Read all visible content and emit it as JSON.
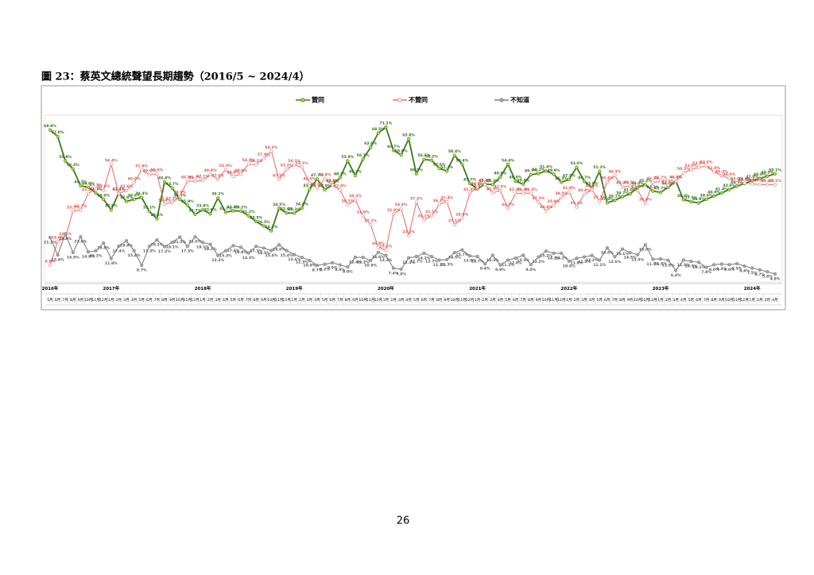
{
  "caption": "圖 23：蔡英文總統聲望長期趨勢（2016/5 ~ 2024/4）",
  "page_number": "26",
  "chart_data": {
    "type": "line",
    "categories": [
      "5月",
      "6月",
      "7月",
      "8月",
      "9月",
      "10月",
      "11月",
      "12月",
      "1月",
      "2月",
      "3月",
      "4月",
      "5月",
      "6月",
      "7月",
      "8月",
      "9月",
      "10月",
      "11月",
      "12月",
      "1月",
      "2月",
      "3月",
      "4月",
      "5月",
      "6月",
      "7月",
      "8月",
      "9月",
      "10月",
      "11月",
      "12月",
      "1月",
      "2月",
      "3月",
      "4月",
      "5月",
      "6月",
      "7月",
      "8月",
      "9月",
      "10月",
      "11月",
      "12月",
      "1月",
      "2月",
      "3月",
      "4月",
      "5月",
      "6月",
      "7月",
      "8月",
      "9月",
      "10月",
      "11月",
      "12月",
      "1月",
      "2月",
      "3月",
      "4月",
      "5月",
      "6月",
      "7月",
      "8月",
      "9月",
      "10月",
      "11月",
      "12月",
      "1月",
      "2月",
      "3月",
      "4月",
      "5月",
      "6月",
      "7月",
      "8月",
      "9月",
      "10月",
      "11月",
      "12月",
      "1月",
      "2月",
      "3月",
      "4月",
      "5月",
      "6月",
      "7月",
      "8月",
      "9月",
      "10月",
      "11月",
      "12月",
      "1月",
      "2月",
      "3月",
      "4月"
    ],
    "years": [
      "2016年",
      null,
      null,
      null,
      null,
      null,
      null,
      null,
      "2017年",
      null,
      null,
      null,
      null,
      null,
      null,
      null,
      null,
      null,
      null,
      null,
      "2018年",
      null,
      null,
      null,
      null,
      null,
      null,
      null,
      null,
      null,
      null,
      null,
      "2019年",
      null,
      null,
      null,
      null,
      null,
      null,
      null,
      null,
      null,
      null,
      null,
      "2020年",
      null,
      null,
      null,
      null,
      null,
      null,
      null,
      null,
      null,
      null,
      null,
      "2021年",
      null,
      null,
      null,
      null,
      null,
      null,
      null,
      null,
      null,
      null,
      null,
      "2022年",
      null,
      null,
      null,
      null,
      null,
      null,
      null,
      null,
      null,
      null,
      null,
      "2023年",
      null,
      null,
      null,
      null,
      null,
      null,
      null,
      null,
      null,
      null,
      null,
      "2024年",
      null,
      null,
      null
    ],
    "ylim": [
      0,
      80
    ],
    "series": [
      {
        "name": "贊同",
        "color": "#3a7a1c",
        "marker": "#b8e03a",
        "values": [
          69.9,
          67.0,
          55.9,
          52.3,
          44.7,
          44.0,
          41.4,
          38.6,
          33.8,
          41.4,
          37.6,
          38.6,
          39.4,
          33.1,
          29.8,
          46.4,
          43.7,
          38.6,
          35.9,
          31.7,
          33.8,
          32.0,
          39.2,
          32.7,
          33.4,
          33.2,
          31.2,
          28.5,
          26.5,
          24.3,
          34.5,
          32.4,
          32.3,
          34.6,
          43.1,
          47.7,
          42.9,
          45.1,
          48.3,
          55.9,
          49.3,
          56.7,
          62.0,
          68.5,
          71.2,
          60.7,
          58.6,
          65.8,
          50.1,
          56.6,
          56.2,
          52.6,
          51.3,
          58.4,
          54.4,
          45.7,
          43.3,
          45.4,
          45.2,
          48.6,
          54.4,
          46.8,
          45.4,
          49.7,
          50.2,
          51.4,
          49.9,
          46.3,
          47.5,
          53.0,
          46.7,
          43.9,
          51.2,
          37.0,
          38.1,
          39.7,
          41.0,
          44.0,
          45.2,
          42.3,
          41.7,
          44.0,
          46.8,
          38.4,
          37.5,
          36.9,
          38.6,
          40.0,
          41.4,
          43.0,
          44.5,
          45.7,
          47.0,
          48.0,
          49.0,
          50.1
        ],
        "value_labels": [
          "69.9%",
          "67.0%",
          "55.9%",
          "52.3%",
          "44.7%",
          "44.0%",
          "41.4%",
          "38.6%",
          "33.8%",
          "41.4%",
          "37.6%",
          "38.6%",
          "39.4%",
          "33.1%",
          "29.8%",
          "46.4%",
          "43.7%",
          "38.6%",
          "35.9%",
          "31.7%",
          "33.8%",
          "32.0%",
          "39.2%",
          "32.7%",
          "33.4%",
          "33.2%",
          "31.2%",
          "28.5%",
          "26.5%",
          "24.3%",
          "34.5%",
          "32.4%",
          "32.3%",
          "34.6%",
          "43.1%",
          "47.7%",
          "42.9%",
          "45.1%",
          "48.3%",
          "55.9%",
          "49.3%",
          "56.7%",
          "62.0%",
          "68.5%",
          "71.2%",
          "60.7%",
          "58.6%",
          "65.8%",
          "50.1%",
          "56.6%",
          "56.2%",
          "52.6%",
          "51.3%",
          "58.4%",
          "54.4%",
          "45.7%",
          "43.3%",
          "45.4%",
          "45.2%",
          "48.6%",
          "54.4%",
          "46.8%",
          "45.4%",
          "49.7%",
          "50.2%",
          "51.4%",
          "49.9%",
          "46.3%",
          "47.5%",
          "53.0%",
          "46.7%",
          "43.9%",
          "51.2%",
          "37.0%",
          "38.1%",
          "39.7%",
          "41.0%",
          "44.0%",
          "45.2%",
          "42.3%",
          "41.7%",
          "44.0%",
          "46.8%",
          "38.4%",
          "37.5%",
          "36.9%",
          "38.6%",
          "40.0%",
          "41.4%",
          "43.0%",
          "44.5%",
          "45.7%",
          "47.0%",
          "48.0%",
          "49.0%",
          "50.1%"
        ]
      },
      {
        "name": "不贊同",
        "color": "#e57373",
        "marker": "#ffffff",
        "values": [
          8.8,
          19.6,
          21.1,
          33.2,
          33.7,
          41.2,
          43.3,
          42.6,
          54.4,
          41.2,
          42.6,
          46.0,
          51.9,
          49.6,
          50.0,
          36.4,
          37.2,
          39.9,
          46.8,
          46.7,
          47.1,
          49.8,
          47.6,
          52.0,
          49.0,
          49.9,
          54.5,
          54.2,
          57.0,
          60.3,
          47.5,
          52.2,
          54.1,
          53.1,
          46.0,
          43.6,
          47.9,
          45.0,
          42.8,
          36.1,
          38.3,
          31.0,
          27.1,
          16.9,
          15.6,
          31.9,
          34.4,
          22.1,
          37.2,
          29.2,
          31.1,
          36.3,
          37.4,
          27.1,
          29.9,
          41.3,
          44.0,
          45.2,
          41.5,
          42.5,
          34.5,
          41.2,
          41.3,
          41.3,
          37.3,
          33.4,
          35.9,
          39.5,
          41.9,
          35.1,
          40.8,
          42.9,
          37.7,
          46.4,
          49.3,
          44.2,
          44.5,
          42.5,
          36.8,
          46.2,
          46.7,
          45.0,
          46.8,
          50.5,
          52.0,
          53.0,
          53.6,
          51.0,
          49.3,
          48.0,
          46.0,
          45.9,
          45.5,
          45.3,
          45.2,
          45.1
        ],
        "value_labels": [
          "8.8%",
          "19.6%",
          "21.1%",
          "33.2%",
          "33.7%",
          "41.2%",
          "43.3%",
          "42.6%",
          "54.4%",
          "41.2%",
          "42.6%",
          "46.0%",
          "51.9%",
          "49.6%",
          "50.0%",
          "36.4%",
          "37.2%",
          "39.9%",
          "46.8%",
          "46.7%",
          "47.1%",
          "49.8%",
          "47.6%",
          "52.0%",
          "49.0%",
          "49.9%",
          "54.5%",
          "54.2%",
          "57.0%",
          "60.3%",
          "47.5%",
          "52.2%",
          "54.1%",
          "53.1%",
          "46.0%",
          "43.6%",
          "47.9%",
          "45.0%",
          "42.8%",
          "36.1%",
          "38.3%",
          "31.0%",
          "27.1%",
          "16.9%",
          "15.6%",
          "31.9%",
          "34.4%",
          "22.1%",
          "37.2%",
          "29.2%",
          "31.1%",
          "36.3%",
          "37.4%",
          "27.1%",
          "29.9%",
          "41.3%",
          "44.0%",
          "45.2%",
          "41.5%",
          "42.5%",
          "34.5%",
          "41.2%",
          "41.3%",
          "41.3%",
          "37.3%",
          "33.4%",
          "35.9%",
          "39.5%",
          "41.9%",
          "35.1%",
          "40.8%",
          "42.9%",
          "37.7%",
          "46.4%",
          "49.3%",
          "44.2%",
          "44.5%",
          "42.5%",
          "36.8%",
          "46.2%",
          "46.7%",
          "45.0%",
          "46.8%",
          "50.5%",
          "52.0%",
          "53.0%",
          "53.6%",
          "51.0%",
          "49.3%",
          "48.0%",
          "46.0%",
          "45.9%",
          "45.5%",
          "45.3%",
          "45.2%",
          "45.1%"
        ]
      },
      {
        "name": "不知道",
        "color": "#7f7f7f",
        "marker": "#a6a6a6",
        "values": [
          21.3,
          13.4,
          23.0,
          14.5,
          21.6,
          14.8,
          15.3,
          18.8,
          11.8,
          17.4,
          19.8,
          15.4,
          8.7,
          17.3,
          20.2,
          17.2,
          19.1,
          21.5,
          17.3,
          21.6,
          19.1,
          18.2,
          13.2,
          15.3,
          17.6,
          16.9,
          14.3,
          17.3,
          16.5,
          15.4,
          18.0,
          15.4,
          13.6,
          12.3,
          10.9,
          8.7,
          9.2,
          9.9,
          8.9,
          8.0,
          12.4,
          12.3,
          10.9,
          14.6,
          13.2,
          7.4,
          7.0,
          12.1,
          12.7,
          14.2,
          12.7,
          11.1,
          11.3,
          14.5,
          15.7,
          13.0,
          12.7,
          9.4,
          13.3,
          8.9,
          11.1,
          12.0,
          13.3,
          9.0,
          12.5,
          15.2,
          14.2,
          14.2,
          10.6,
          11.9,
          12.5,
          13.2,
          11.1,
          16.6,
          12.6,
          16.1,
          14.5,
          13.5,
          18.0,
          11.5,
          11.6,
          11.0,
          6.4,
          11.1,
          10.5,
          10.1,
          7.8,
          9.0,
          9.3,
          9.0,
          9.5,
          8.4,
          7.5,
          6.7,
          5.8,
          4.8
        ],
        "value_labels": [
          "21.3%",
          "13.4%",
          "23.0%",
          "14.5%",
          "21.6%",
          "14.8%",
          "15.3%",
          "18.8%",
          "11.8%",
          "17.4%",
          "19.8%",
          "15.4%",
          "8.7%",
          "17.3%",
          "20.2%",
          "17.2%",
          "19.1%",
          "21.5%",
          "17.3%",
          "21.6%",
          "19.1%",
          "18.2%",
          "13.2%",
          "15.3%",
          "17.6%",
          "16.9%",
          "14.3%",
          "17.3%",
          "16.5%",
          "15.4%",
          "18.0%",
          "15.4%",
          "13.6%",
          "12.3%",
          "10.9%",
          "8.7%",
          "9.2%",
          "9.9%",
          "8.9%",
          "8.0%",
          "12.4%",
          "12.3%",
          "10.9%",
          "14.6%",
          "13.2%",
          "7.4%",
          "7.0%",
          "12.1%",
          "12.7%",
          "14.2%",
          "12.7%",
          "11.1%",
          "11.3%",
          "14.5%",
          "15.7%",
          "13.0%",
          "12.7%",
          "9.4%",
          "13.3%",
          "8.9%",
          "11.1%",
          "12.0%",
          "13.3%",
          "9.0%",
          "12.5%",
          "15.2%",
          "14.2%",
          "14.2%",
          "10.6%",
          "11.9%",
          "12.5%",
          "13.2%",
          "11.1%",
          "16.6%",
          "12.6%",
          "16.1%",
          "14.5%",
          "13.5%",
          "18.0%",
          "11.5%",
          "11.6%",
          "11.0%",
          "6.4%",
          "11.1%",
          "10.5%",
          "10.1%",
          "7.8%",
          "9.0%",
          "9.3%",
          "9.0%",
          "9.5%",
          "8.4%",
          "7.5%",
          "6.7%",
          "5.8%",
          "4.8%"
        ]
      }
    ]
  }
}
